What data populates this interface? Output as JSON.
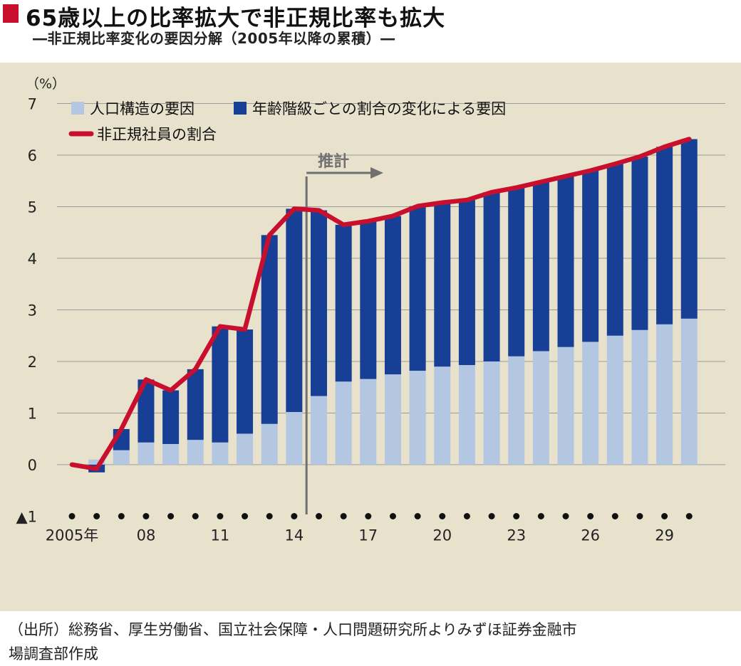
{
  "title": "65歳以上の比率拡大で非正規比率も拡大",
  "subtitle": "―非正規比率変化の要因分解（2005年以降の累積）―",
  "source": [
    "（出所）総務省、厚生労働省、国立社会保障・人口問題研究所よりみずほ証券金融市",
    "場調査部作成"
  ],
  "colors": {
    "structure": "#b4c7e2",
    "age_share": "#163f95",
    "line": "#c8102e",
    "background": "#e8e2cd",
    "grid": "#9a9a9a",
    "forecast_marker": "#707070"
  },
  "chart_data": {
    "type": "bar",
    "stacked": true,
    "unit_label": "（%）",
    "x": [
      2005,
      2006,
      2007,
      2008,
      2009,
      2010,
      2011,
      2012,
      2013,
      2014,
      2015,
      2016,
      2017,
      2018,
      2019,
      2020,
      2021,
      2022,
      2023,
      2024,
      2025,
      2026,
      2027,
      2028,
      2029,
      2030
    ],
    "ylim": [
      -1,
      7
    ],
    "y_ticks": [
      -1,
      0,
      1,
      2,
      3,
      4,
      5,
      6,
      7
    ],
    "y_tick_labels": [
      "▲1",
      "0",
      "1",
      "2",
      "3",
      "4",
      "5",
      "6",
      "7"
    ],
    "x_tick_labels": [
      {
        "x": 2005,
        "label": "2005年"
      },
      {
        "x": 2008,
        "label": "08"
      },
      {
        "x": 2011,
        "label": "11"
      },
      {
        "x": 2014,
        "label": "14"
      },
      {
        "x": 2017,
        "label": "17"
      },
      {
        "x": 2020,
        "label": "20"
      },
      {
        "x": 2023,
        "label": "23"
      },
      {
        "x": 2026,
        "label": "26"
      },
      {
        "x": 2029,
        "label": "29"
      }
    ],
    "grid": true,
    "legend_position": "top-left",
    "series": [
      {
        "name": "人口構造の要因",
        "kind": "bar",
        "values": [
          0,
          0.1,
          0.28,
          0.43,
          0.4,
          0.48,
          0.43,
          0.6,
          0.79,
          1.02,
          1.33,
          1.61,
          1.66,
          1.75,
          1.82,
          1.9,
          1.93,
          2.0,
          2.1,
          2.2,
          2.28,
          2.38,
          2.5,
          2.61,
          2.72,
          2.83
        ]
      },
      {
        "name": "年齢階級ごとの割合の変化による要因",
        "kind": "bar",
        "values": [
          0,
          -0.15,
          0.41,
          1.22,
          1.04,
          1.37,
          2.25,
          2.02,
          3.66,
          3.94,
          3.6,
          3.04,
          3.06,
          3.07,
          3.19,
          3.18,
          3.2,
          3.28,
          3.27,
          3.28,
          3.31,
          3.32,
          3.33,
          3.36,
          3.44,
          3.48
        ]
      },
      {
        "name": "非正規社員の割合",
        "kind": "line",
        "values": [
          0,
          -0.08,
          0.69,
          1.65,
          1.44,
          1.85,
          2.68,
          2.62,
          4.45,
          4.96,
          4.93,
          4.65,
          4.72,
          4.82,
          5.01,
          5.08,
          5.13,
          5.28,
          5.37,
          5.48,
          5.59,
          5.7,
          5.83,
          5.97,
          6.16,
          6.31
        ]
      }
    ],
    "annotations": [
      {
        "text": "推計",
        "from_x": 2014.5
      }
    ]
  }
}
